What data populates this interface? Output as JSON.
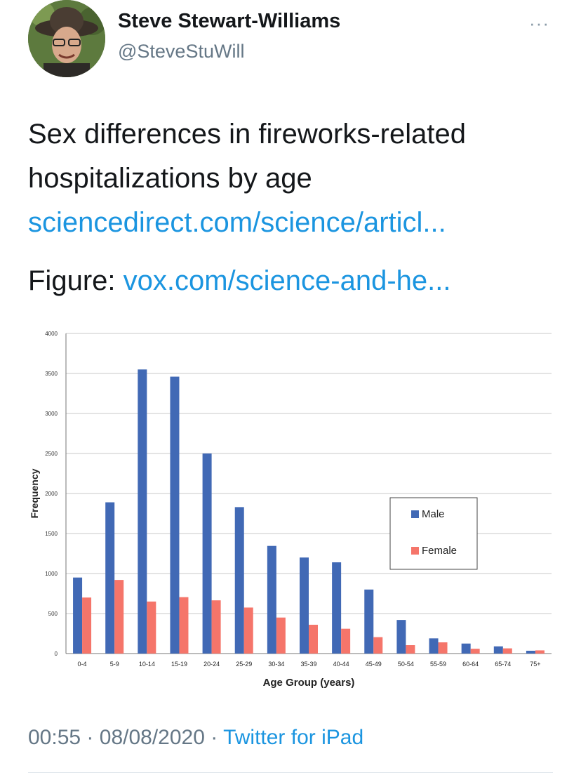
{
  "tweet": {
    "author_name": "Steve Stewart-Williams",
    "handle": "@SteveStuWill",
    "more_icon": "more-options-icon",
    "more_label": "···",
    "text_line1": "Sex differences in fireworks-related",
    "text_line2": "hospitalizations by age",
    "link1": "sciencedirect.com/science/articl...",
    "figure_label": "Figure: ",
    "link2": "vox.com/science-and-he...",
    "time": "00:55",
    "dot": "·",
    "date": "08/08/2020",
    "source": "Twitter for iPad",
    "link_color": "#1b95e0"
  },
  "chart_data": {
    "type": "bar",
    "xlabel": "Age Group (years)",
    "ylabel": "Frequency",
    "ylim": [
      0,
      4000
    ],
    "yticks": [
      0,
      500,
      1000,
      1500,
      2000,
      2500,
      3000,
      3500,
      4000
    ],
    "grid": true,
    "legend_position": "right",
    "categories": [
      "0-4",
      "5-9",
      "10-14",
      "15-19",
      "20-24",
      "25-29",
      "30-34",
      "35-39",
      "40-44",
      "45-49",
      "50-54",
      "55-59",
      "60-64",
      "65-74",
      "75+"
    ],
    "series": [
      {
        "name": "Male",
        "color": "#4169b5",
        "values": [
          950,
          1890,
          3550,
          3460,
          2500,
          1830,
          1345,
          1200,
          1140,
          800,
          420,
          190,
          125,
          90,
          35
        ]
      },
      {
        "name": "Female",
        "color": "#f5756a",
        "values": [
          700,
          920,
          650,
          705,
          665,
          575,
          450,
          360,
          310,
          205,
          105,
          140,
          60,
          65,
          40
        ]
      }
    ]
  }
}
